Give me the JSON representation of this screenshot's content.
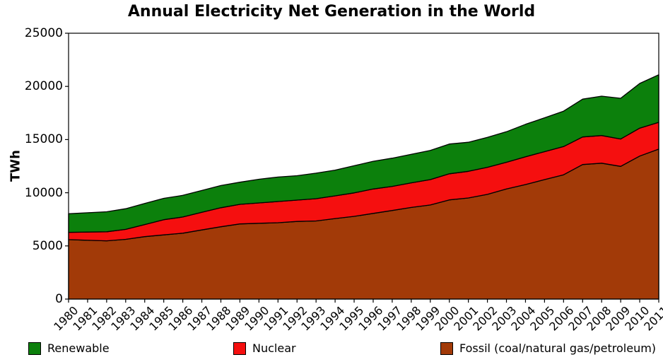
{
  "title": "Annual Electricity Net Generation in the World",
  "y_axis_label": "TWh",
  "chart_data": {
    "type": "area",
    "stacked": true,
    "title": "Annual Electricity Net Generation in the World",
    "xlabel": "",
    "ylabel": "TWh",
    "ylim": [
      0,
      25000
    ],
    "yticks": [
      0,
      5000,
      10000,
      15000,
      20000,
      25000
    ],
    "grid": false,
    "legend_position": "bottom",
    "outline_color": "#000000",
    "x": [
      1980,
      1981,
      1982,
      1983,
      1984,
      1985,
      1986,
      1987,
      1988,
      1989,
      1990,
      1991,
      1992,
      1993,
      1994,
      1995,
      1996,
      1997,
      1998,
      1999,
      2000,
      2001,
      2002,
      2003,
      2004,
      2005,
      2006,
      2007,
      2008,
      2009,
      2010,
      2011
    ],
    "series": [
      {
        "name": "Fossil (coal/natural gas/petroleum)",
        "color": "#A23A08",
        "values": [
          5590,
          5530,
          5480,
          5620,
          5870,
          6040,
          6200,
          6500,
          6800,
          7070,
          7130,
          7180,
          7300,
          7350,
          7570,
          7780,
          8060,
          8330,
          8620,
          8850,
          9330,
          9510,
          9850,
          10350,
          10770,
          11240,
          11690,
          12650,
          12780,
          12480,
          13450,
          14100
        ]
      },
      {
        "name": "Nuclear",
        "color": "#F50F0F",
        "values": [
          684,
          775,
          850,
          935,
          1140,
          1425,
          1520,
          1655,
          1790,
          1840,
          1910,
          1995,
          2010,
          2090,
          2135,
          2210,
          2290,
          2270,
          2310,
          2390,
          2450,
          2505,
          2545,
          2515,
          2615,
          2625,
          2655,
          2595,
          2600,
          2570,
          2630,
          2520
        ]
      },
      {
        "name": "Renewable",
        "color": "#0C800C",
        "values": [
          1750,
          1815,
          1880,
          1945,
          1985,
          2010,
          2035,
          2055,
          2090,
          2080,
          2230,
          2300,
          2290,
          2400,
          2420,
          2550,
          2610,
          2650,
          2690,
          2735,
          2800,
          2730,
          2820,
          2870,
          3050,
          3180,
          3330,
          3560,
          3700,
          3830,
          4200,
          4480
        ]
      }
    ]
  },
  "legend": {
    "items": [
      {
        "label": "Renewable",
        "color": "#0C800C"
      },
      {
        "label": "Nuclear",
        "color": "#F50F0F"
      },
      {
        "label": "Fossil (coal/natural gas/petroleum)",
        "color": "#A23A08"
      }
    ]
  }
}
